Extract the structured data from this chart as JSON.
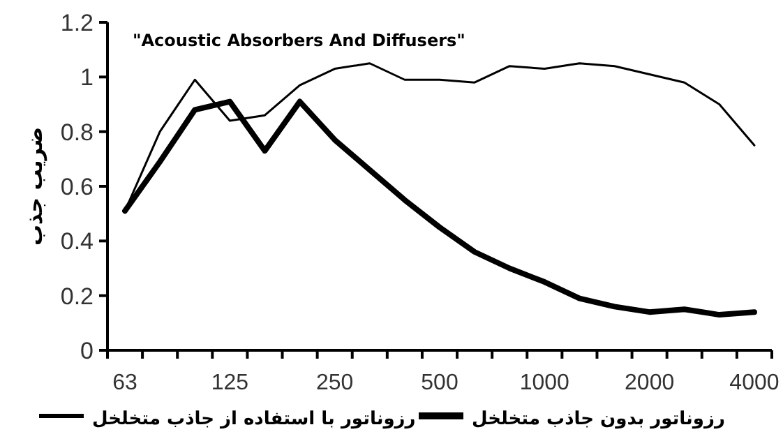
{
  "chart_data": {
    "type": "line",
    "ylabel": "ضریب جذب",
    "annotations": [
      "\"Acoustic Absorbers And Diffusers\""
    ],
    "categories": [
      "63",
      null,
      null,
      "125",
      null,
      null,
      "250",
      null,
      null,
      "500",
      null,
      null,
      "1000",
      null,
      null,
      "2000",
      null,
      null,
      "4000"
    ],
    "series": [
      {
        "name": "رزوناتور با استفاده از جاذب متخلخل",
        "color": "#000000",
        "values": [
          0.51,
          0.8,
          0.99,
          0.84,
          0.86,
          0.97,
          1.03,
          1.05,
          0.99,
          0.99,
          0.98,
          1.04,
          1.03,
          1.05,
          1.04,
          1.01,
          0.98,
          0.9,
          0.75
        ]
      },
      {
        "name": "رزوناتور بدون جاذب متخلخل",
        "color": "#000000",
        "values": [
          0.51,
          0.69,
          0.88,
          0.91,
          0.73,
          0.91,
          0.77,
          0.66,
          0.55,
          0.45,
          0.36,
          0.3,
          0.25,
          0.19,
          0.16,
          0.14,
          0.15,
          0.13,
          0.14
        ]
      }
    ],
    "ylim": [
      0,
      1.2
    ],
    "yticks": [
      0,
      0.2,
      0.4,
      0.6,
      0.8,
      1,
      1.2
    ],
    "grid": false,
    "legend": "bottom",
    "marker": "none",
    "line_style": "solid"
  }
}
